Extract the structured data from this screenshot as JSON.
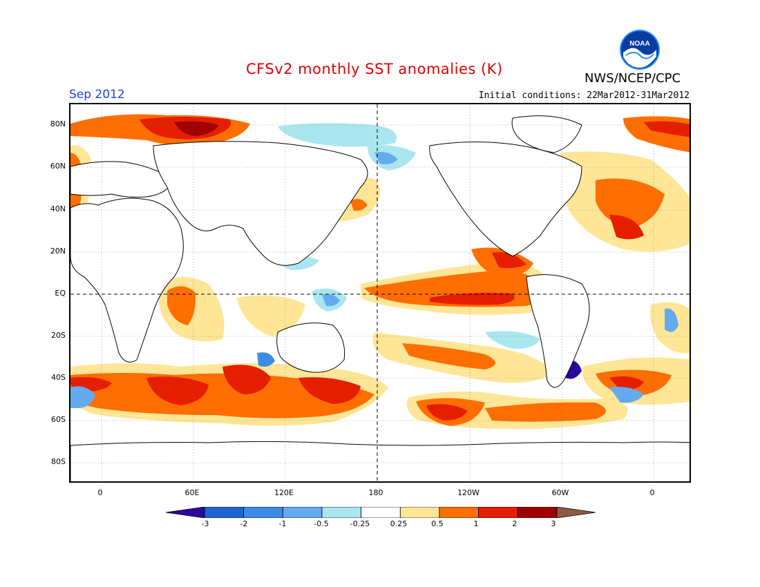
{
  "header": {
    "title": "CFSv2 monthly SST anomalies (K)",
    "month": "Sep 2012",
    "initial_conditions": "Initial conditions: 22Mar2012-31Mar2012",
    "agency": "NWS/NCEP/CPC",
    "logo_text": "NOAA"
  },
  "axes": {
    "lat_labels": [
      "80N",
      "60N",
      "40N",
      "20N",
      "EQ",
      "20S",
      "40S",
      "60S",
      "80S"
    ],
    "lon_labels": [
      "0",
      "60E",
      "120E",
      "180",
      "120W",
      "60W",
      "0"
    ]
  },
  "legend": {
    "labels": [
      "-3",
      "-2",
      "-1",
      "-0.5",
      "-0.25",
      "0.25",
      "0.5",
      "1",
      "2",
      "3"
    ],
    "colors": [
      "#2a08a0",
      "#1e64d2",
      "#3c8ce6",
      "#64aaf0",
      "#aae6f0",
      "#ffffff",
      "#ffe696",
      "#ff6e00",
      "#e61e00",
      "#a00000",
      "#8c5a46"
    ]
  },
  "colors": {
    "title": "#e00000",
    "month": "#2040e0",
    "land": "#ffffff"
  }
}
